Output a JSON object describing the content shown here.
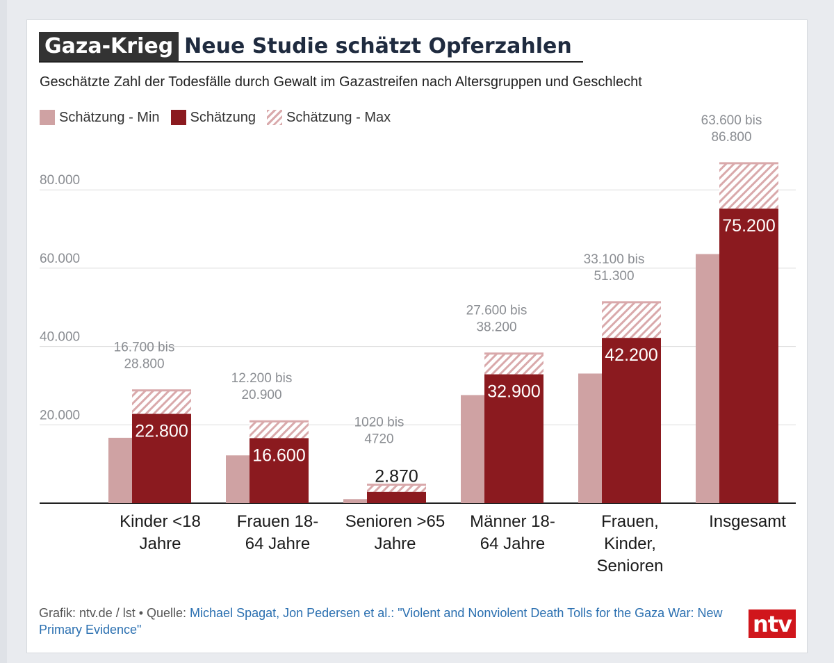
{
  "header": {
    "kicker": "Gaza-Krieg",
    "title": "Neue Studie schätzt Opferzahlen",
    "subtitle": "Geschätzte Zahl der Todesfälle durch Gewalt im Gazastreifen nach Altersgruppen und Geschlecht"
  },
  "legend": {
    "min": "Schätzung - Min",
    "estimate": "Schätzung",
    "max": "Schätzung - Max"
  },
  "colors": {
    "min": "#cfa2a3",
    "estimate": "#8b1a1f",
    "max_stripe": "#d9a9ab",
    "gridline": "#dddddd",
    "baseline": "#222222"
  },
  "chart_data": {
    "type": "bar",
    "title": "Geschätzte Zahl der Todesfälle durch Gewalt im Gazastreifen nach Altersgruppen und Geschlecht",
    "xlabel": "",
    "ylabel": "",
    "ylim": [
      0,
      86800
    ],
    "yticks": [
      20000,
      40000,
      60000,
      80000
    ],
    "ytick_labels": [
      "20.000",
      "40.000",
      "60.000",
      "80.000"
    ],
    "categories": [
      [
        "Kinder <18",
        "Jahre"
      ],
      [
        "Frauen 18-",
        "64 Jahre"
      ],
      [
        "Senioren >65",
        "Jahre"
      ],
      [
        "Männer 18-",
        "64 Jahre"
      ],
      [
        "Frauen,",
        "Kinder,",
        "Senioren"
      ],
      [
        "Insgesamt"
      ]
    ],
    "series": [
      {
        "name": "Schätzung - Min",
        "values": [
          16700,
          12200,
          1020,
          27600,
          33100,
          63600
        ]
      },
      {
        "name": "Schätzung",
        "values": [
          22800,
          16600,
          2870,
          32900,
          42200,
          75200
        ]
      },
      {
        "name": "Schätzung - Max",
        "values": [
          28800,
          20900,
          4720,
          38200,
          51300,
          86800
        ]
      }
    ],
    "estimate_labels": [
      "22.800",
      "16.600",
      "2.870",
      "32.900",
      "42.200",
      "75.200"
    ],
    "range_labels": [
      [
        "16.700 bis",
        "28.800"
      ],
      [
        "12.200 bis",
        "20.900"
      ],
      [
        "1020 bis",
        "4720"
      ],
      [
        "27.600 bis",
        "38.200"
      ],
      [
        "33.100 bis",
        "51.300"
      ],
      [
        "63.600 bis",
        "86.800"
      ]
    ]
  },
  "footer": {
    "credit": "Grafik: ntv.de / lst • Quelle: ",
    "source": "Michael Spagat, Jon Pedersen et al.: \"Violent and Nonviolent Death Tolls for the Gaza War: New Primary Evidence\""
  },
  "logo": {
    "text": "ntv"
  }
}
